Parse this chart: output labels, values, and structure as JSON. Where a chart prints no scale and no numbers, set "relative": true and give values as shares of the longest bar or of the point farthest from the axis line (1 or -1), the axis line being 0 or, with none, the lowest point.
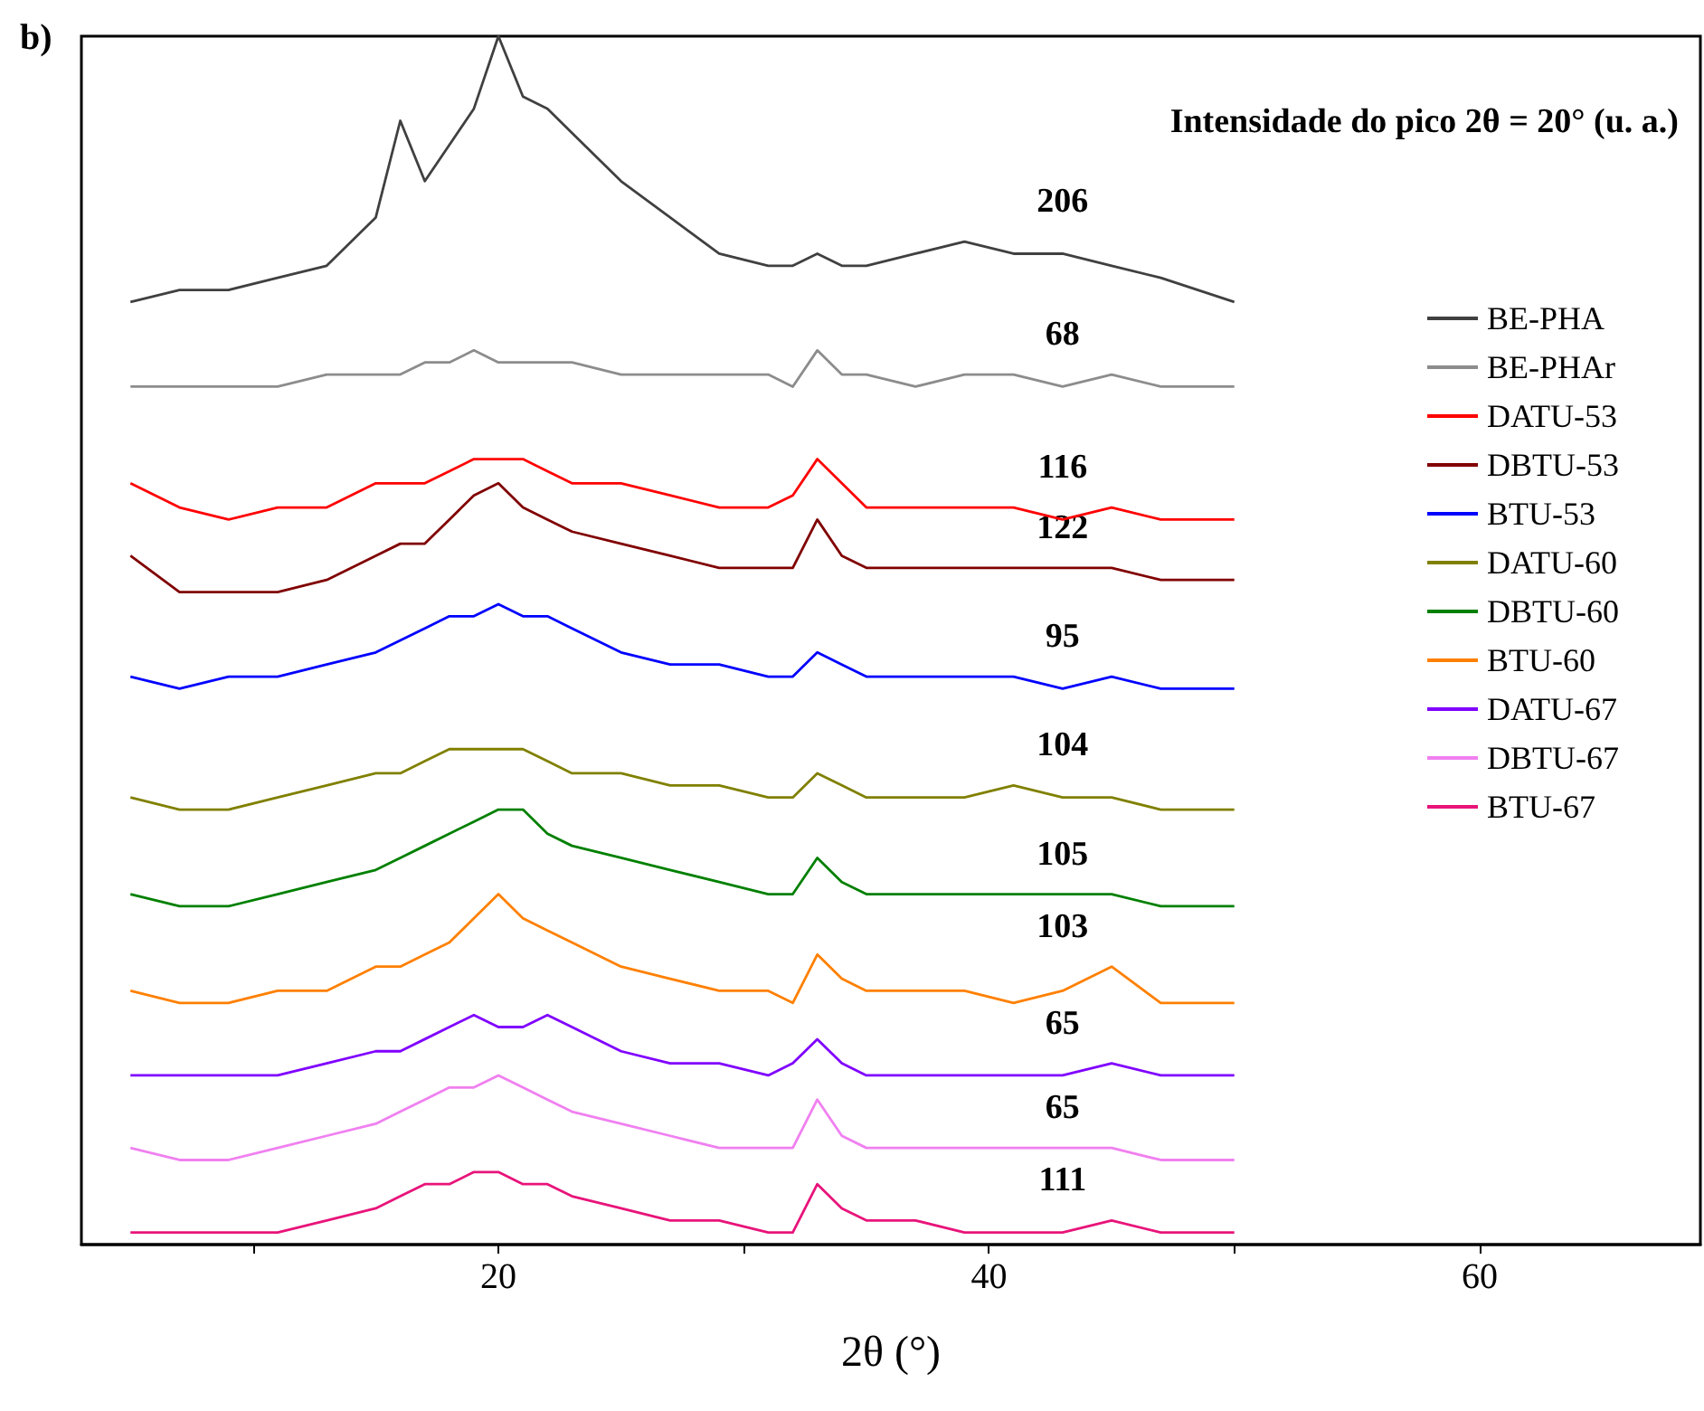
{
  "chart_data": {
    "type": "line",
    "title": "b)",
    "xlabel": "2θ (°)",
    "relative": true,
    "legend": "right",
    "xlim": [
      3,
      69
    ],
    "xticks": [
      {
        "value": 10,
        "label": null
      },
      20,
      {
        "value": 30,
        "label": null
      },
      40,
      {
        "value": 50,
        "label": null
      },
      60
    ],
    "x": [
      5,
      7,
      9,
      11,
      13,
      15,
      16,
      17,
      18,
      19,
      20,
      21,
      22,
      23,
      25,
      27,
      29,
      31,
      32,
      33,
      34,
      35,
      37,
      39,
      41,
      43,
      45,
      47,
      50
    ],
    "series": [
      {
        "name": "BE-PHA",
        "color": "#404040",
        "values": [
          0.78,
          0.79,
          0.79,
          0.8,
          0.81,
          0.85,
          0.93,
          0.88,
          0.91,
          0.94,
          1.0,
          0.95,
          0.94,
          0.92,
          0.88,
          0.85,
          0.82,
          0.81,
          0.81,
          0.82,
          0.81,
          0.81,
          0.82,
          0.83,
          0.82,
          0.82,
          0.81,
          0.8,
          0.78
        ]
      },
      {
        "name": "BE-PHAr",
        "color": "#8c8c8c",
        "values": [
          0.71,
          0.71,
          0.71,
          0.71,
          0.72,
          0.72,
          0.72,
          0.73,
          0.73,
          0.74,
          0.73,
          0.73,
          0.73,
          0.73,
          0.72,
          0.72,
          0.72,
          0.72,
          0.71,
          0.74,
          0.72,
          0.72,
          0.71,
          0.72,
          0.72,
          0.71,
          0.72,
          0.71,
          0.71
        ]
      },
      {
        "name": "DATU-53",
        "color": "#ff0000",
        "values": [
          0.63,
          0.61,
          0.6,
          0.61,
          0.61,
          0.63,
          0.63,
          0.63,
          0.64,
          0.65,
          0.65,
          0.65,
          0.64,
          0.63,
          0.63,
          0.62,
          0.61,
          0.61,
          0.62,
          0.65,
          0.63,
          0.61,
          0.61,
          0.61,
          0.61,
          0.6,
          0.61,
          0.6,
          0.6
        ]
      },
      {
        "name": "DBTU-53",
        "color": "#800000",
        "values": [
          0.57,
          0.54,
          0.54,
          0.54,
          0.55,
          0.57,
          0.58,
          0.58,
          0.6,
          0.62,
          0.63,
          0.61,
          0.6,
          0.59,
          0.58,
          0.57,
          0.56,
          0.56,
          0.56,
          0.6,
          0.57,
          0.56,
          0.56,
          0.56,
          0.56,
          0.56,
          0.56,
          0.55,
          0.55
        ]
      },
      {
        "name": "BTU-53",
        "color": "#0000ff",
        "values": [
          0.47,
          0.46,
          0.47,
          0.47,
          0.48,
          0.49,
          0.5,
          0.51,
          0.52,
          0.52,
          0.53,
          0.52,
          0.52,
          0.51,
          0.49,
          0.48,
          0.48,
          0.47,
          0.47,
          0.49,
          0.48,
          0.47,
          0.47,
          0.47,
          0.47,
          0.46,
          0.47,
          0.46,
          0.46
        ]
      },
      {
        "name": "DATU-60",
        "color": "#808000",
        "values": [
          0.37,
          0.36,
          0.36,
          0.37,
          0.38,
          0.39,
          0.39,
          0.4,
          0.41,
          0.41,
          0.41,
          0.41,
          0.4,
          0.39,
          0.39,
          0.38,
          0.38,
          0.37,
          0.37,
          0.39,
          0.38,
          0.37,
          0.37,
          0.37,
          0.38,
          0.37,
          0.37,
          0.36,
          0.36
        ]
      },
      {
        "name": "DBTU-60",
        "color": "#008000",
        "values": [
          0.29,
          0.28,
          0.28,
          0.29,
          0.3,
          0.31,
          0.32,
          0.33,
          0.34,
          0.35,
          0.36,
          0.36,
          0.34,
          0.33,
          0.32,
          0.31,
          0.3,
          0.29,
          0.29,
          0.32,
          0.3,
          0.29,
          0.29,
          0.29,
          0.29,
          0.29,
          0.29,
          0.28,
          0.28
        ]
      },
      {
        "name": "BTU-60",
        "color": "#ff8000",
        "values": [
          0.21,
          0.2,
          0.2,
          0.21,
          0.21,
          0.23,
          0.23,
          0.24,
          0.25,
          0.27,
          0.29,
          0.27,
          0.26,
          0.25,
          0.23,
          0.22,
          0.21,
          0.21,
          0.2,
          0.24,
          0.22,
          0.21,
          0.21,
          0.21,
          0.2,
          0.21,
          0.23,
          0.2,
          0.2
        ]
      },
      {
        "name": "DATU-67",
        "color": "#8000ff",
        "values": [
          0.14,
          0.14,
          0.14,
          0.14,
          0.15,
          0.16,
          0.16,
          0.17,
          0.18,
          0.19,
          0.18,
          0.18,
          0.19,
          0.18,
          0.16,
          0.15,
          0.15,
          0.14,
          0.15,
          0.17,
          0.15,
          0.14,
          0.14,
          0.14,
          0.14,
          0.14,
          0.15,
          0.14,
          0.14
        ]
      },
      {
        "name": "DBTU-67",
        "color": "#f080f0",
        "values": [
          0.08,
          0.07,
          0.07,
          0.08,
          0.09,
          0.1,
          0.11,
          0.12,
          0.13,
          0.13,
          0.14,
          0.13,
          0.12,
          0.11,
          0.1,
          0.09,
          0.08,
          0.08,
          0.08,
          0.12,
          0.09,
          0.08,
          0.08,
          0.08,
          0.08,
          0.08,
          0.08,
          0.07,
          0.07
        ]
      },
      {
        "name": "BTU-67",
        "color": "#e8147a",
        "values": [
          0.01,
          0.01,
          0.01,
          0.01,
          0.02,
          0.03,
          0.04,
          0.05,
          0.05,
          0.06,
          0.06,
          0.05,
          0.05,
          0.04,
          0.03,
          0.02,
          0.02,
          0.01,
          0.01,
          0.05,
          0.03,
          0.02,
          0.02,
          0.01,
          0.01,
          0.01,
          0.02,
          0.01,
          0.01
        ]
      }
    ],
    "annotations": [
      "Intensidade do pico 2θ = 20° (u. a.)",
      "206",
      "68",
      "116",
      "122",
      "95",
      "104",
      "105",
      "103",
      "65",
      "65",
      "111"
    ]
  }
}
